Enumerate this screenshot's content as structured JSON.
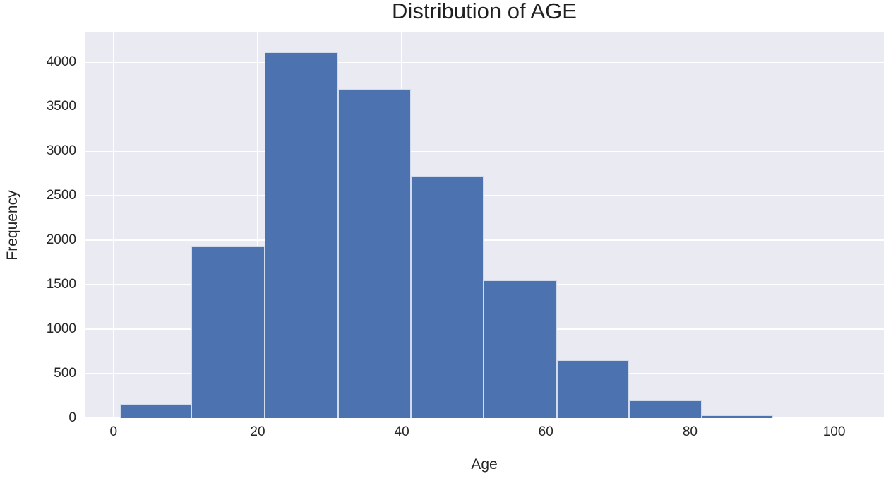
{
  "figure": {
    "title": "Distribution of AGE"
  },
  "chart_data": {
    "type": "bar",
    "subtype": "histogram",
    "title": "Distribution of AGE",
    "xlabel": "Age",
    "ylabel": "Frequency",
    "bin_edges": [
      0.9,
      10.8,
      21.0,
      31.2,
      41.3,
      51.4,
      61.5,
      71.5,
      81.6,
      91.5
    ],
    "counts": [
      160,
      1940,
      4110,
      3700,
      2725,
      1545,
      655,
      195,
      30
    ],
    "xticks": [
      0,
      20,
      40,
      60,
      80,
      100
    ],
    "yticks": [
      0,
      500,
      1000,
      1500,
      2000,
      2500,
      3000,
      3500,
      4000
    ],
    "xlim": [
      -3.9,
      106.9
    ],
    "ylim": [
      0,
      4344
    ],
    "grid": true,
    "legend": false,
    "colors": {
      "bar_fill": "#4C72B0",
      "bar_edge": "#FFFFFF",
      "plot_background": "#EAEAF2",
      "gridline": "#FFFFFF",
      "text": "#262626"
    }
  }
}
